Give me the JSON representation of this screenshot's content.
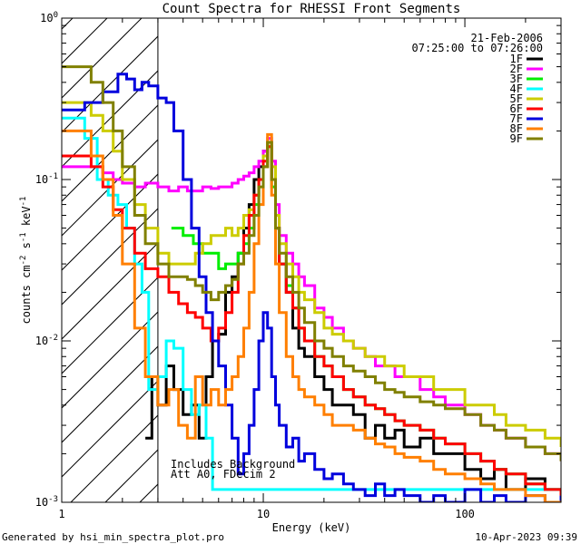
{
  "chart_data": {
    "type": "line",
    "title": "Count Spectra for RHESSI Front Segments",
    "xlabel": "Energy (keV)",
    "ylabel_main": "counts cm",
    "ylabel_sup1": "-2",
    "ylabel_mid": " s",
    "ylabel_sup2": "-1",
    "ylabel_end": " keV",
    "ylabel_sup3": "-1",
    "xscale": "log",
    "yscale": "log",
    "xlim": [
      1,
      300
    ],
    "ylim": [
      0.001,
      1
    ],
    "x_ticks": [
      {
        "value": 1,
        "label": "1"
      },
      {
        "value": 10,
        "label": "10"
      },
      {
        "value": 100,
        "label": "100"
      }
    ],
    "y_ticks": [
      {
        "value": 1,
        "base": "10",
        "exp": "0"
      },
      {
        "value": 0.1,
        "base": "10",
        "exp": "-1"
      },
      {
        "value": 0.01,
        "base": "10",
        "exp": "-2"
      },
      {
        "value": 0.001,
        "base": "10",
        "exp": "-3"
      }
    ],
    "date": "21-Feb-2006",
    "time_range": "07:25:00 to 07:26:00",
    "notes": [
      "Includes Background",
      "Att A0, FDecim 2"
    ],
    "footer_left": "Generated by hsi_min_spectra_plot.pro",
    "footer_right": "10-Apr-2023 09:39",
    "excluded_region_max_kev": 3,
    "series": [
      {
        "name": "1F",
        "color": "#000000",
        "x": [
          2.6,
          2.8,
          3.0,
          3.3,
          3.6,
          4.0,
          4.4,
          4.8,
          5.2,
          5.6,
          6.0,
          6.5,
          7.0,
          7.5,
          8.0,
          8.5,
          9.0,
          9.5,
          10.0,
          10.5,
          11.0,
          11.5,
          12,
          13,
          14,
          15,
          16,
          18,
          20,
          22,
          25,
          28,
          32,
          36,
          40,
          45,
          50,
          60,
          70,
          80,
          100,
          120,
          140,
          160,
          200,
          250,
          300
        ],
        "y": [
          0.0025,
          0.006,
          0.004,
          0.007,
          0.005,
          0.0035,
          0.004,
          0.0025,
          0.006,
          0.01,
          0.011,
          0.02,
          0.025,
          0.035,
          0.05,
          0.07,
          0.1,
          0.12,
          0.15,
          0.17,
          0.1,
          0.05,
          0.03,
          0.02,
          0.012,
          0.009,
          0.008,
          0.006,
          0.005,
          0.004,
          0.004,
          0.0035,
          0.0025,
          0.003,
          0.0025,
          0.0028,
          0.0022,
          0.0025,
          0.002,
          0.002,
          0.0016,
          0.0014,
          0.0016,
          0.0012,
          0.0014,
          0.0012,
          0.0011
        ]
      },
      {
        "name": "2F",
        "color": "#ff00ff",
        "x": [
          1,
          1.2,
          1.4,
          1.6,
          1.8,
          2.0,
          2.3,
          2.6,
          3.0,
          3.4,
          3.8,
          4.2,
          4.6,
          5,
          5.5,
          6,
          6.5,
          7,
          7.5,
          8,
          8.5,
          9,
          9.5,
          10,
          10.5,
          11,
          11.5,
          12,
          13,
          14,
          15,
          16,
          18,
          20,
          22,
          25,
          28,
          32,
          36,
          40,
          45,
          50,
          60,
          70,
          80,
          100,
          120,
          140,
          160,
          200,
          250,
          300
        ],
        "y": [
          0.12,
          0.12,
          0.12,
          0.11,
          0.1,
          0.095,
          0.09,
          0.095,
          0.09,
          0.085,
          0.09,
          0.085,
          0.085,
          0.09,
          0.088,
          0.09,
          0.09,
          0.095,
          0.1,
          0.105,
          0.11,
          0.12,
          0.13,
          0.15,
          0.18,
          0.13,
          0.07,
          0.045,
          0.035,
          0.03,
          0.025,
          0.022,
          0.016,
          0.014,
          0.012,
          0.01,
          0.009,
          0.008,
          0.007,
          0.007,
          0.006,
          0.006,
          0.005,
          0.0045,
          0.004,
          0.0035,
          0.003,
          0.0028,
          0.0025,
          0.0022,
          0.002,
          0.0018
        ]
      },
      {
        "name": "3F",
        "color": "#00ee00",
        "x": [
          3.5,
          4,
          4.5,
          5,
          5.5,
          6,
          6.5,
          7,
          7.5,
          8,
          8.5,
          9,
          9.5,
          10,
          10.5,
          11,
          11.5,
          12,
          13,
          14,
          15,
          16,
          18,
          20,
          22,
          25,
          28,
          32,
          36,
          40,
          45,
          50,
          60,
          70,
          80,
          100,
          120,
          140,
          160,
          200,
          250,
          300
        ],
        "y": [
          0.05,
          0.045,
          0.04,
          0.035,
          0.035,
          0.028,
          0.03,
          0.03,
          0.035,
          0.04,
          0.05,
          0.07,
          0.1,
          0.12,
          0.16,
          0.09,
          0.05,
          0.03,
          0.022,
          0.016,
          0.012,
          0.01,
          0.008,
          0.007,
          0.006,
          0.005,
          0.0045,
          0.004,
          0.0038,
          0.0035,
          0.0032,
          0.003,
          0.0028,
          0.0025,
          0.0023,
          0.002,
          0.0018,
          0.0016,
          0.0015,
          0.0013,
          0.0012,
          0.0011
        ]
      },
      {
        "name": "4F",
        "color": "#00ffff",
        "x": [
          1,
          1.1,
          1.3,
          1.5,
          1.7,
          1.9,
          2.1,
          2.3,
          2.5,
          2.7,
          3.0,
          3.3,
          3.6,
          4.0,
          4.4,
          4.8,
          5.2,
          5.6
        ],
        "y": [
          0.24,
          0.24,
          0.18,
          0.1,
          0.08,
          0.07,
          0.05,
          0.03,
          0.02,
          0.005,
          0.006,
          0.01,
          0.009,
          0.005,
          0.0035,
          0.004,
          0.0025,
          0.0012
        ]
      },
      {
        "name": "5F",
        "color": "#cccc00",
        "x": [
          1,
          1.2,
          1.4,
          1.6,
          1.8,
          2,
          2.3,
          2.6,
          3,
          3.4,
          3.8,
          4.2,
          4.6,
          5,
          5.5,
          6,
          6.5,
          7,
          7.5,
          8,
          8.5,
          9,
          9.5,
          10,
          10.5,
          11,
          11.5,
          12,
          13,
          14,
          15,
          16,
          18,
          20,
          22,
          25,
          28,
          32,
          36,
          40,
          45,
          50,
          60,
          70,
          80,
          100,
          120,
          140,
          160,
          200,
          250,
          300
        ],
        "y": [
          0.3,
          0.3,
          0.25,
          0.2,
          0.15,
          0.1,
          0.07,
          0.05,
          0.035,
          0.03,
          0.03,
          0.03,
          0.035,
          0.04,
          0.045,
          0.045,
          0.05,
          0.045,
          0.05,
          0.06,
          0.065,
          0.08,
          0.1,
          0.14,
          0.17,
          0.12,
          0.06,
          0.04,
          0.03,
          0.025,
          0.02,
          0.018,
          0.015,
          0.012,
          0.011,
          0.01,
          0.009,
          0.008,
          0.008,
          0.007,
          0.007,
          0.006,
          0.006,
          0.005,
          0.005,
          0.004,
          0.004,
          0.0035,
          0.003,
          0.0028,
          0.0025,
          0.0022
        ]
      },
      {
        "name": "6F",
        "color": "#ff0000",
        "x": [
          1,
          1.2,
          1.4,
          1.6,
          1.8,
          2,
          2.3,
          2.6,
          3,
          3.4,
          3.8,
          4.2,
          4.6,
          5,
          5.5,
          6,
          6.5,
          7,
          7.5,
          8,
          8.5,
          9,
          9.5,
          10,
          10.5,
          11,
          11.5,
          12,
          13,
          14,
          15,
          16,
          18,
          20,
          22,
          25,
          28,
          32,
          36,
          40,
          45,
          50,
          60,
          70,
          80,
          100,
          120,
          140,
          160,
          200,
          250,
          300
        ],
        "y": [
          0.14,
          0.14,
          0.12,
          0.09,
          0.065,
          0.05,
          0.035,
          0.028,
          0.025,
          0.02,
          0.017,
          0.015,
          0.014,
          0.012,
          0.01,
          0.012,
          0.015,
          0.02,
          0.03,
          0.045,
          0.06,
          0.08,
          0.1,
          0.13,
          0.16,
          0.1,
          0.05,
          0.03,
          0.02,
          0.016,
          0.012,
          0.01,
          0.008,
          0.007,
          0.006,
          0.005,
          0.0045,
          0.004,
          0.0038,
          0.0035,
          0.0032,
          0.003,
          0.0028,
          0.0025,
          0.0023,
          0.002,
          0.0018,
          0.0016,
          0.0015,
          0.0013,
          0.0012,
          0.0011
        ]
      },
      {
        "name": "7F",
        "color": "#0000dd",
        "x": [
          1,
          1.3,
          1.6,
          1.9,
          2.1,
          2.3,
          2.5,
          2.7,
          3.0,
          3.3,
          3.6,
          4.0,
          4.4,
          4.8,
          5.2,
          5.6,
          6.0,
          6.5,
          7.0,
          7.5,
          8,
          8.5,
          9,
          9.5,
          10,
          10.5,
          11,
          11.5,
          12,
          13,
          14,
          15,
          16,
          18,
          20,
          22,
          25,
          28,
          32,
          36,
          40,
          45,
          50,
          60,
          70,
          80,
          100,
          120,
          140,
          160,
          200,
          250,
          300
        ],
        "y": [
          0.27,
          0.3,
          0.35,
          0.45,
          0.42,
          0.36,
          0.4,
          0.38,
          0.32,
          0.3,
          0.2,
          0.1,
          0.05,
          0.025,
          0.015,
          0.01,
          0.007,
          0.004,
          0.0025,
          0.0015,
          0.002,
          0.003,
          0.005,
          0.01,
          0.015,
          0.012,
          0.006,
          0.004,
          0.003,
          0.0022,
          0.0025,
          0.0018,
          0.002,
          0.0016,
          0.0014,
          0.0015,
          0.0013,
          0.0012,
          0.0011,
          0.0013,
          0.0011,
          0.0012,
          0.0011,
          0.001,
          0.0011,
          0.001,
          0.0012,
          0.001,
          0.0011,
          0.001,
          0.0011,
          0.001,
          0.0011
        ]
      },
      {
        "name": "8F",
        "color": "#ff7f00",
        "x": [
          1,
          1.2,
          1.4,
          1.6,
          1.8,
          2,
          2.3,
          2.6,
          3,
          3.4,
          3.8,
          4.2,
          4.6,
          5,
          5.5,
          6,
          6.5,
          7,
          7.5,
          8,
          8.5,
          9,
          9.5,
          10,
          10.5,
          11,
          11.5,
          12,
          13,
          14,
          15,
          16,
          18,
          20,
          22,
          25,
          28,
          32,
          36,
          40,
          45,
          50,
          60,
          70,
          80,
          100,
          120,
          140,
          160,
          200,
          250,
          300
        ],
        "y": [
          0.2,
          0.2,
          0.14,
          0.1,
          0.06,
          0.03,
          0.012,
          0.006,
          0.004,
          0.005,
          0.003,
          0.0025,
          0.006,
          0.004,
          0.005,
          0.004,
          0.005,
          0.006,
          0.008,
          0.012,
          0.02,
          0.04,
          0.07,
          0.12,
          0.19,
          0.08,
          0.03,
          0.015,
          0.008,
          0.006,
          0.005,
          0.0045,
          0.004,
          0.0035,
          0.003,
          0.003,
          0.0028,
          0.0025,
          0.0023,
          0.0022,
          0.002,
          0.0019,
          0.0018,
          0.0016,
          0.0015,
          0.0014,
          0.0013,
          0.0012,
          0.0012,
          0.0011,
          0.001,
          0.001
        ]
      },
      {
        "name": "9F",
        "color": "#808000",
        "x": [
          1,
          1.2,
          1.4,
          1.6,
          1.8,
          2,
          2.3,
          2.6,
          3,
          3.4,
          3.8,
          4.2,
          4.6,
          5,
          5.5,
          6,
          6.5,
          7,
          7.5,
          8,
          8.5,
          9,
          9.5,
          10,
          10.5,
          11,
          11.5,
          12,
          13,
          14,
          15,
          16,
          18,
          20,
          22,
          25,
          28,
          32,
          36,
          40,
          45,
          50,
          60,
          70,
          80,
          100,
          120,
          140,
          160,
          200,
          250,
          300
        ],
        "y": [
          0.5,
          0.5,
          0.4,
          0.3,
          0.2,
          0.12,
          0.06,
          0.04,
          0.03,
          0.025,
          0.025,
          0.024,
          0.022,
          0.02,
          0.018,
          0.02,
          0.022,
          0.024,
          0.03,
          0.035,
          0.045,
          0.06,
          0.09,
          0.12,
          0.17,
          0.1,
          0.05,
          0.035,
          0.025,
          0.02,
          0.016,
          0.013,
          0.01,
          0.009,
          0.008,
          0.007,
          0.0065,
          0.006,
          0.0055,
          0.005,
          0.0048,
          0.0045,
          0.0042,
          0.004,
          0.0038,
          0.0035,
          0.003,
          0.0028,
          0.0025,
          0.0022,
          0.002,
          0.0018
        ]
      }
    ]
  }
}
